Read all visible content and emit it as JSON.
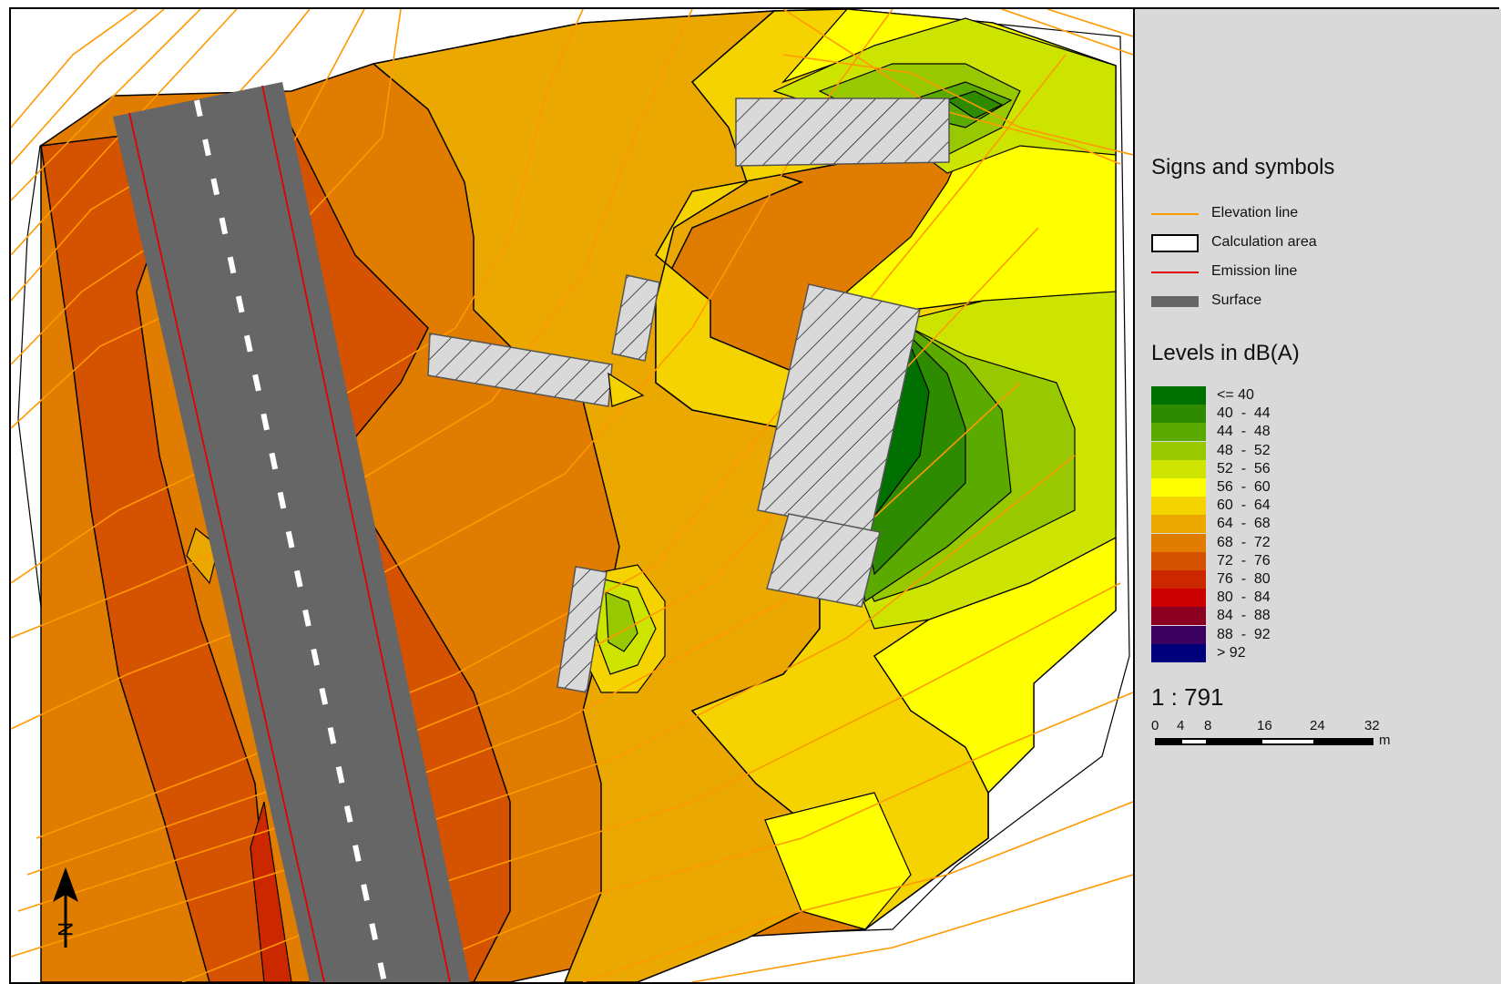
{
  "colors": {
    "elevation_line": "#ff9900",
    "emission_line": "#e00000",
    "surface": "#666666",
    "building_fill": "#d9d9d9"
  },
  "legend": {
    "signs_title": "Signs and symbols",
    "symbols": [
      {
        "label": "Elevation line",
        "kind": "line",
        "color": "#ff9900"
      },
      {
        "label": "Calculation area",
        "kind": "box",
        "color": "#000000"
      },
      {
        "label": "Emission line",
        "kind": "line",
        "color": "#e00000"
      },
      {
        "label": "Surface",
        "kind": "surface",
        "color": "#666666"
      }
    ],
    "levels_title": "Levels in dB(A)",
    "bands": [
      {
        "label": "<= 40",
        "color": "#007000"
      },
      {
        "label": "40  -  44",
        "color": "#2e8b00"
      },
      {
        "label": "44  -  48",
        "color": "#5aaa00"
      },
      {
        "label": "48  -  52",
        "color": "#98c800"
      },
      {
        "label": "52  -  56",
        "color": "#cce400"
      },
      {
        "label": "56  -  60",
        "color": "#ffff00"
      },
      {
        "label": "60  -  64",
        "color": "#f5d300"
      },
      {
        "label": "64  -  68",
        "color": "#eaa800"
      },
      {
        "label": "68  -  72",
        "color": "#e07c00"
      },
      {
        "label": "72  -  76",
        "color": "#d55200"
      },
      {
        "label": "76  -  80",
        "color": "#cc2800"
      },
      {
        "label": "80  -  84",
        "color": "#cc0000"
      },
      {
        "label": "84  -  88",
        "color": "#8b0020"
      },
      {
        "label": "88  -  92",
        "color": "#3c0060"
      },
      {
        "label": "> 92",
        "color": "#00007a"
      }
    ]
  },
  "scale": {
    "ratio": "1 : 791",
    "ticks": [
      "0",
      "4",
      "8",
      "16",
      "24",
      "32"
    ],
    "unit": "m"
  },
  "north_arrow": {
    "label": "N"
  }
}
